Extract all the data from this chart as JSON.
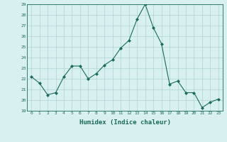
{
  "x": [
    0,
    1,
    2,
    3,
    4,
    5,
    6,
    7,
    8,
    9,
    10,
    11,
    12,
    13,
    14,
    15,
    16,
    17,
    18,
    19,
    20,
    21,
    22,
    23
  ],
  "y": [
    22.2,
    21.6,
    20.5,
    20.7,
    22.2,
    23.2,
    23.2,
    22.0,
    22.5,
    23.3,
    23.8,
    24.9,
    25.6,
    27.6,
    29.0,
    26.8,
    25.3,
    21.5,
    21.8,
    20.7,
    20.7,
    19.3,
    19.8,
    20.1
  ],
  "xlabel": "Humidex (Indice chaleur)",
  "ylim": [
    19,
    29
  ],
  "xlim_min": -0.5,
  "xlim_max": 23.5,
  "yticks": [
    19,
    20,
    21,
    22,
    23,
    24,
    25,
    26,
    27,
    28,
    29
  ],
  "xticks": [
    0,
    1,
    2,
    3,
    4,
    5,
    6,
    7,
    8,
    9,
    10,
    11,
    12,
    13,
    14,
    15,
    16,
    17,
    18,
    19,
    20,
    21,
    22,
    23
  ],
  "line_color": "#1a6b5a",
  "marker": "D",
  "marker_size": 2.0,
  "bg_color": "#d8f0f0",
  "grid_color": "#b0d4d4",
  "tick_label_fontsize": 4.5,
  "xlabel_fontsize": 6.5,
  "linewidth": 0.8
}
